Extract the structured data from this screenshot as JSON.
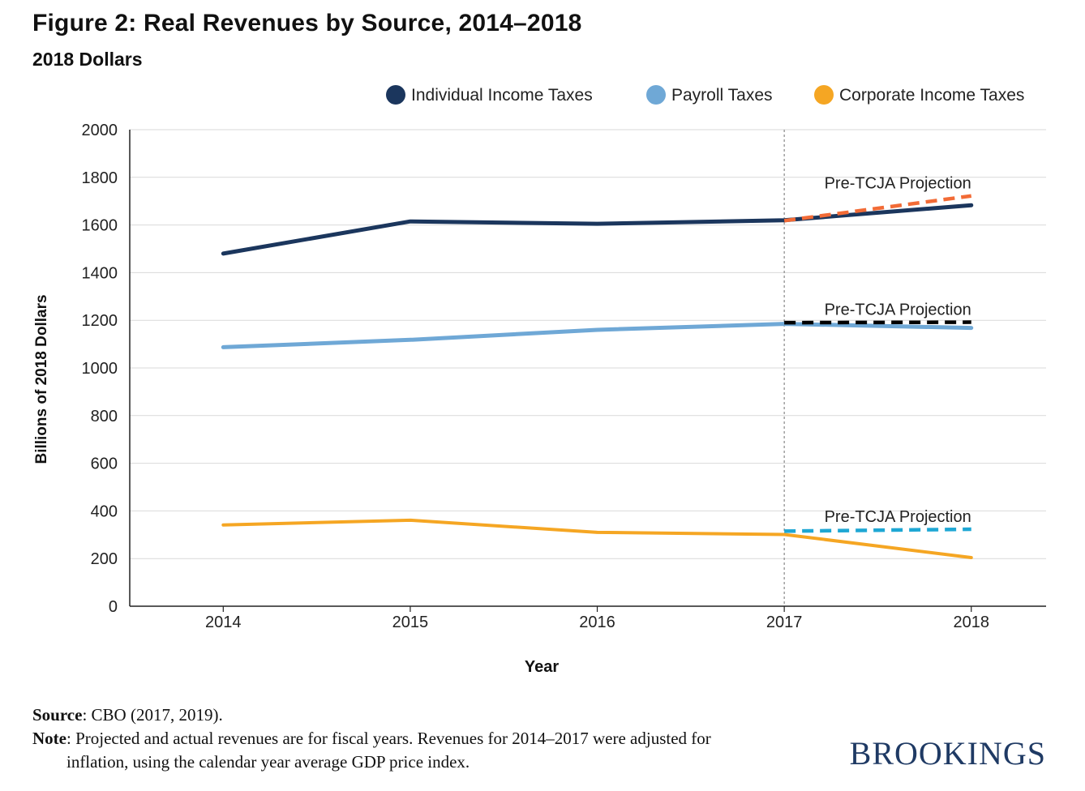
{
  "header": {
    "title": "Figure 2: Real Revenues by Source, 2014–2018",
    "subtitle": "2018 Dollars"
  },
  "chart_data": {
    "type": "line",
    "title": "Figure 2: Real Revenues by Source, 2014–2018",
    "subtitle": "2018 Dollars",
    "xlabel": "Year",
    "ylabel": "Billions of 2018 Dollars",
    "x": [
      2014,
      2015,
      2016,
      2017,
      2018
    ],
    "xlim": [
      2013.5,
      2018.4
    ],
    "ylim": [
      0,
      2000
    ],
    "yticks": [
      0,
      200,
      400,
      600,
      800,
      1000,
      1200,
      1400,
      1600,
      1800,
      2000
    ],
    "grid": true,
    "legend_position": "top-right",
    "series": [
      {
        "name": "Individual Income Taxes",
        "color": "#1b365d",
        "values": [
          1480,
          1615,
          1605,
          1620,
          1683
        ]
      },
      {
        "name": "Payroll Taxes",
        "color": "#6fa8d6",
        "values": [
          1087,
          1118,
          1160,
          1185,
          1168
        ]
      },
      {
        "name": "Corporate Income Taxes",
        "color": "#f5a623",
        "values": [
          341,
          361,
          310,
          301,
          204
        ]
      }
    ],
    "projections": [
      {
        "label": "Pre-TCJA Projection",
        "color": "#f26b36",
        "x": [
          2017,
          2018
        ],
        "values": [
          1618,
          1722
        ]
      },
      {
        "label": "Pre-TCJA Projection",
        "color": "#000000",
        "x": [
          2017,
          2018
        ],
        "values": [
          1190,
          1192
        ]
      },
      {
        "label": "Pre-TCJA Projection",
        "color": "#1ea7d4",
        "x": [
          2017,
          2018
        ],
        "values": [
          315,
          323
        ]
      }
    ],
    "divider_x": 2017
  },
  "footer": {
    "source_label": "Source",
    "source_text": ": CBO (2017, 2019).",
    "note_label": "Note",
    "note_text": ": Projected and actual revenues are for fiscal years.  Revenues for 2014–2017 were adjusted for inflation, using the calendar year average GDP price index."
  },
  "brand": "BROOKINGS"
}
